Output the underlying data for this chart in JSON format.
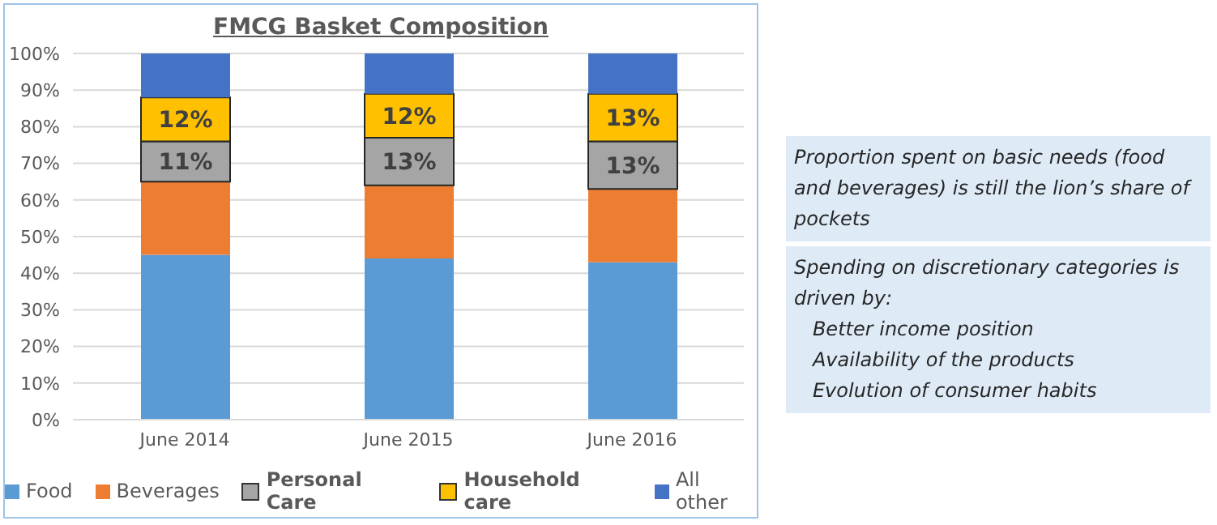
{
  "chart_data": {
    "type": "bar",
    "title": "FMCG Basket Composition",
    "stacked": true,
    "categories": [
      "June 2014",
      "June 2015",
      "June 2016"
    ],
    "series": [
      {
        "name": "Food",
        "color": "#5b9bd5",
        "values": [
          45,
          44,
          43
        ]
      },
      {
        "name": "Beverages",
        "color": "#ed7d31",
        "values": [
          20,
          20,
          20
        ]
      },
      {
        "name": "Personal Care",
        "color": "#a5a5a5",
        "values": [
          11,
          13,
          13
        ],
        "value_labels": [
          "11%",
          "13%",
          "13%"
        ]
      },
      {
        "name": "Household care",
        "color": "#ffc000",
        "values": [
          12,
          12,
          13
        ],
        "value_labels": [
          "12%",
          "12%",
          "13%"
        ]
      },
      {
        "name": "All other",
        "color": "#4472c4",
        "values": [
          12,
          11,
          11
        ]
      }
    ],
    "ylim": [
      0,
      100
    ],
    "yticks": [
      {
        "value": 0,
        "label": "0%"
      },
      {
        "value": 10,
        "label": "10%"
      },
      {
        "value": 20,
        "label": "20%"
      },
      {
        "value": 30,
        "label": "30%"
      },
      {
        "value": 40,
        "label": "40%"
      },
      {
        "value": 50,
        "label": "50%"
      },
      {
        "value": 60,
        "label": "60%"
      },
      {
        "value": 70,
        "label": "70%"
      },
      {
        "value": 80,
        "label": "80%"
      },
      {
        "value": 90,
        "label": "90%"
      },
      {
        "value": 100,
        "label": "100%"
      }
    ],
    "grid": "y",
    "legend": "bottom",
    "annotations": [
      "Proportion spent on basic needs (food and beverages) is still the lion’s share of pockets",
      "Spending on discretionary categories is driven by:\n   Better income position\n   Availability of the products\n   Evolution of consumer habits"
    ]
  }
}
